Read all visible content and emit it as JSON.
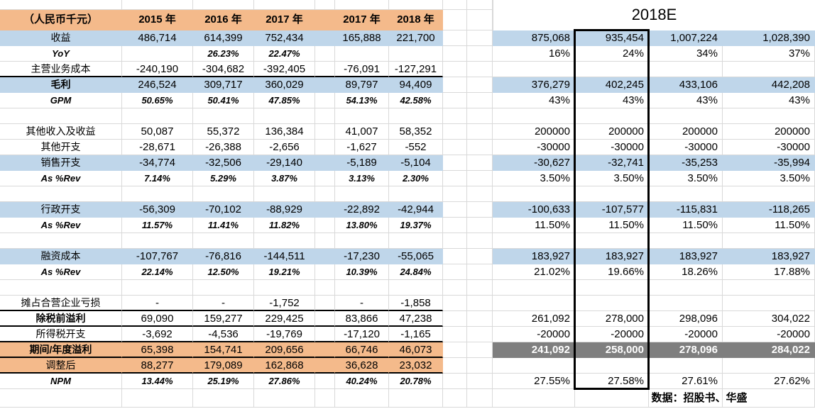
{
  "sheet": {
    "unit_header": "（人民币千元）",
    "columns_annual": [
      "2015 年",
      "2016 年",
      "2017 年"
    ],
    "columns_interim": [
      "2017 年",
      "2018 年"
    ],
    "forecast_title": "2018E",
    "source_note": "数据：招股书、华盛"
  },
  "colors": {
    "orange": "#F4BA8B",
    "blue": "#BFD6EA",
    "gray": "#7F7F7F",
    "gridline": "#D9D9D9",
    "selection": "#000000"
  },
  "rows": [
    {
      "label": "收益",
      "fill": "blue",
      "right_fill": "blue",
      "left": [
        "486,714",
        "614,399",
        "752,434",
        "165,888",
        "221,700"
      ],
      "right": [
        "875,068",
        "935,454",
        "1,007,224",
        "1,028,390"
      ]
    },
    {
      "label": "YoY",
      "pct": true,
      "left": [
        "",
        "26.23%",
        "22.47%",
        "",
        ""
      ],
      "right": [
        "16%",
        "24%",
        "34%",
        "37%"
      ]
    },
    {
      "label": "主营业务成本",
      "hr": true,
      "left": [
        "-240,190",
        "-304,682",
        "-392,405",
        "-76,091",
        "-127,291"
      ],
      "right": [
        "",
        "",
        "",
        ""
      ]
    },
    {
      "label": "毛利",
      "fill": "blue",
      "right_fill": "blue",
      "bold": true,
      "left": [
        "246,524",
        "309,717",
        "360,029",
        "89,797",
        "94,409"
      ],
      "right": [
        "376,279",
        "402,245",
        "433,106",
        "442,208"
      ]
    },
    {
      "label": "GPM",
      "pct": true,
      "left": [
        "50.65%",
        "50.41%",
        "47.85%",
        "54.13%",
        "42.58%"
      ],
      "right": [
        "43%",
        "43%",
        "43%",
        "43%"
      ]
    },
    {
      "label": "",
      "left": [
        "",
        "",
        "",
        "",
        ""
      ],
      "right": [
        "",
        "",
        "",
        ""
      ]
    },
    {
      "label": "其他收入及收益",
      "left": [
        "50,087",
        "55,372",
        "136,384",
        "41,007",
        "58,352"
      ],
      "right": [
        "200000",
        "200000",
        "200000",
        "200000"
      ]
    },
    {
      "label": "其他开支",
      "left": [
        "-28,671",
        "-26,388",
        "-2,656",
        "-1,627",
        "-552"
      ],
      "right": [
        "-30000",
        "-30000",
        "-30000",
        "-30000"
      ]
    },
    {
      "label": "销售开支",
      "fill": "blue",
      "right_fill": "blue",
      "left": [
        "-34,774",
        "-32,506",
        "-29,140",
        "-5,189",
        "-5,104"
      ],
      "right": [
        "-30,627",
        "-32,741",
        "-35,253",
        "-35,994"
      ]
    },
    {
      "label": "As %Rev",
      "pct": true,
      "left": [
        "7.14%",
        "5.29%",
        "3.87%",
        "3.13%",
        "2.30%"
      ],
      "right": [
        "3.50%",
        "3.50%",
        "3.50%",
        "3.50%"
      ]
    },
    {
      "label": "",
      "left": [
        "",
        "",
        "",
        "",
        ""
      ],
      "right": [
        "",
        "",
        "",
        ""
      ]
    },
    {
      "label": "行政开支",
      "fill": "blue",
      "right_fill": "blue",
      "left": [
        "-56,309",
        "-70,102",
        "-88,929",
        "-22,892",
        "-42,944"
      ],
      "right": [
        "-100,633",
        "-107,577",
        "-115,831",
        "-118,265"
      ]
    },
    {
      "label": "As %Rev",
      "pct": true,
      "left": [
        "11.57%",
        "11.41%",
        "11.82%",
        "13.80%",
        "19.37%"
      ],
      "right": [
        "11.50%",
        "11.50%",
        "11.50%",
        "11.50%"
      ]
    },
    {
      "label": "",
      "left": [
        "",
        "",
        "",
        "",
        ""
      ],
      "right": [
        "",
        "",
        "",
        ""
      ]
    },
    {
      "label": "融资成本",
      "fill": "blue",
      "right_fill": "blue",
      "left": [
        "-107,767",
        "-76,816",
        "-144,511",
        "-17,230",
        "-55,065"
      ],
      "right": [
        "183,927",
        "183,927",
        "183,927",
        "183,927"
      ]
    },
    {
      "label": "As %Rev",
      "pct": true,
      "left": [
        "22.14%",
        "12.50%",
        "19.21%",
        "10.39%",
        "24.84%"
      ],
      "right": [
        "21.02%",
        "19.66%",
        "18.26%",
        "17.88%"
      ]
    },
    {
      "label": "",
      "left": [
        "",
        "",
        "",
        "",
        ""
      ],
      "right": [
        "",
        "",
        "",
        ""
      ]
    },
    {
      "label": "摊占合营企业亏损",
      "hr": true,
      "left": [
        "-",
        "-",
        "-1,752",
        "-",
        "-1,858"
      ],
      "right": [
        "",
        "",
        "",
        ""
      ]
    },
    {
      "label": "除税前溢利",
      "bold": true,
      "hr": true,
      "left": [
        "69,090",
        "159,277",
        "229,425",
        "83,866",
        "47,238"
      ],
      "right": [
        "261,092",
        "278,000",
        "298,096",
        "304,022"
      ]
    },
    {
      "label": "所得税开支",
      "hr": true,
      "left": [
        "-3,692",
        "-4,536",
        "-19,769",
        "-17,120",
        "-1,165"
      ],
      "right": [
        "-20000",
        "-20000",
        "-20000",
        "-20000"
      ]
    },
    {
      "label": "期间/年度溢利",
      "fill": "orange",
      "right_fill": "gray",
      "bold": true,
      "hr": true,
      "left": [
        "65,398",
        "154,741",
        "209,656",
        "66,746",
        "46,073"
      ],
      "right": [
        "241,092",
        "258,000",
        "278,096",
        "284,022"
      ]
    },
    {
      "label": "调整后",
      "fill": "orange",
      "hr": true,
      "left": [
        "88,277",
        "179,089",
        "162,868",
        "36,628",
        "23,032"
      ],
      "right": [
        "",
        "",
        "",
        ""
      ]
    },
    {
      "label": "NPM",
      "pct": true,
      "left": [
        "13.44%",
        "25.19%",
        "27.86%",
        "40.24%",
        "20.78%"
      ],
      "right": [
        "27.55%",
        "27.58%",
        "27.61%",
        "27.62%"
      ]
    }
  ]
}
